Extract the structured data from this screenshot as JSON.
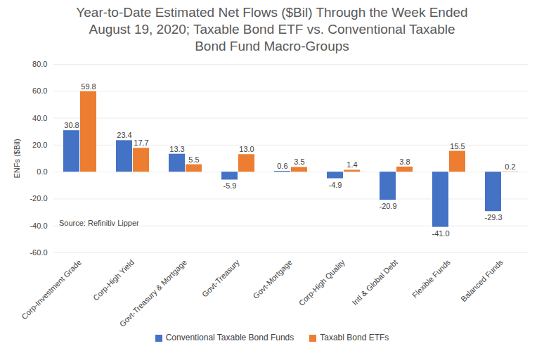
{
  "chart_data": {
    "type": "bar",
    "title": "Year-to-Date Estimated Net Flows ($Bil) Through the Week Ended August 19, 2020; Taxable Bond ETF vs. Conventional Taxable Bond Fund Macro-Groups",
    "y_label": "ENFs ($Bil)",
    "annotations": [
      "Source: Refinitiv Lipper"
    ],
    "categories": [
      "Corp-Investment Grade",
      "Corp-High Yield",
      "Govt-Treasury & Mortgage",
      "Govt-Treasury",
      "Govt-Mortgage",
      "Corp-High Quality",
      "Intl & Global Debt",
      "Flexible Funds",
      "Balanced Funds"
    ],
    "series": [
      {
        "name": "Conventional Taxable Bond Funds",
        "color": "#4472c4",
        "values": [
          30.8,
          23.4,
          13.3,
          -5.9,
          0.6,
          -4.9,
          -20.9,
          -41.0,
          -29.3
        ],
        "value_labels": [
          "30.8",
          "23.4",
          "13.3",
          "-5.9",
          "0.6",
          "-4.9",
          "-20.9",
          "-41.0",
          "-29.3"
        ]
      },
      {
        "name": "Taxabl Bond ETFs",
        "color": "#ed7d31",
        "values": [
          59.8,
          17.7,
          5.5,
          13.0,
          3.5,
          1.4,
          3.8,
          15.5,
          0.2
        ],
        "value_labels": [
          "59.8",
          "17.7",
          "5.5",
          "13.0",
          "3.5",
          "1.4",
          "3.8",
          "15.5",
          "0.2"
        ]
      }
    ],
    "ylim": [
      -60,
      80
    ],
    "yticks": [
      {
        "value": -60,
        "label": "-60.0"
      },
      {
        "value": -40,
        "label": "-40.0"
      },
      {
        "value": -20,
        "label": "-20.0"
      },
      {
        "value": 0,
        "label": "0.0"
      },
      {
        "value": 20,
        "label": "20.0"
      },
      {
        "value": 40,
        "label": "40.0"
      },
      {
        "value": 60,
        "label": "60.0"
      },
      {
        "value": 80,
        "label": "80.0"
      }
    ],
    "grid": true,
    "data_labels": true,
    "legend": "bottom"
  }
}
